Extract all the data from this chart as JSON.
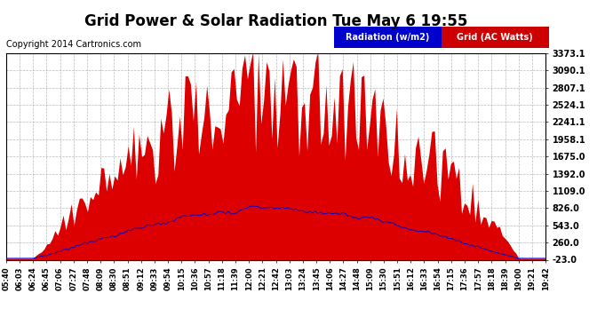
{
  "title": "Grid Power & Solar Radiation Tue May 6 19:55",
  "copyright": "Copyright 2014 Cartronics.com",
  "legend_radiation": "Radiation (w/m2)",
  "legend_grid": "Grid (AC Watts)",
  "legend_radiation_bg": "#0000cc",
  "legend_grid_bg": "#cc0000",
  "y_min": -23.0,
  "y_max": 3373.1,
  "yticks": [
    -23.0,
    260.0,
    543.0,
    826.0,
    1109.0,
    1392.0,
    1675.0,
    1958.1,
    2241.1,
    2524.1,
    2807.1,
    3090.1,
    3373.1
  ],
  "fill_color": "#dd0000",
  "line_color": "#0000cc",
  "background_color": "#ffffff",
  "grid_color": "#aaaaaa",
  "title_fontsize": 12,
  "copyright_fontsize": 7,
  "xtick_fontsize": 6,
  "ytick_fontsize": 7,
  "x_time_labels": [
    "05:40",
    "06:03",
    "06:24",
    "06:45",
    "07:06",
    "07:27",
    "07:48",
    "08:09",
    "08:30",
    "08:51",
    "09:12",
    "09:33",
    "09:54",
    "10:15",
    "10:36",
    "10:57",
    "11:18",
    "11:39",
    "12:00",
    "12:21",
    "12:42",
    "13:03",
    "13:24",
    "13:45",
    "14:06",
    "14:27",
    "14:48",
    "15:09",
    "15:30",
    "15:51",
    "16:12",
    "16:33",
    "16:54",
    "17:15",
    "17:36",
    "17:57",
    "18:18",
    "18:39",
    "19:00",
    "19:21",
    "19:42"
  ]
}
